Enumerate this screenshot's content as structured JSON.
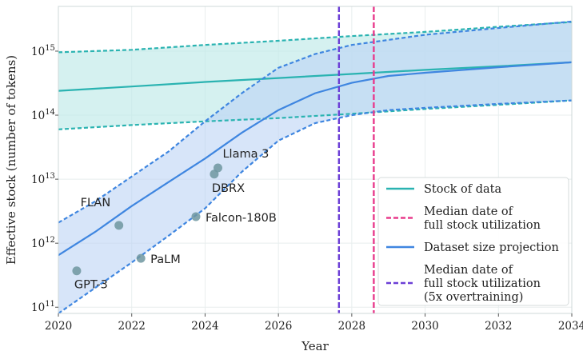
{
  "chart_data": {
    "type": "line",
    "xlabel": "Year",
    "ylabel": "Effective stock (number of tokens)",
    "xlim": [
      2020,
      2034
    ],
    "ylim": [
      80000000000.0,
      5000000000000000.0
    ],
    "yscale": "log",
    "grid": true,
    "legend_position": "bottom-right",
    "x_ticks": [
      2020,
      2022,
      2024,
      2026,
      2028,
      2030,
      2032,
      2034
    ],
    "y_ticks": [
      {
        "value": 100000000000.0,
        "base": "10",
        "exp": "11"
      },
      {
        "value": 1000000000000.0,
        "base": "10",
        "exp": "12"
      },
      {
        "value": 10000000000000.0,
        "base": "10",
        "exp": "13"
      },
      {
        "value": 100000000000000.0,
        "base": "10",
        "exp": "14"
      },
      {
        "value": 1000000000000000.0,
        "base": "10",
        "exp": "15"
      }
    ],
    "series": [
      {
        "name": "Stock of data",
        "color": "#2ab3b1",
        "median": [
          [
            2020,
            240000000000000.0
          ],
          [
            2022,
            280000000000000.0
          ],
          [
            2024,
            330000000000000.0
          ],
          [
            2026,
            380000000000000.0
          ],
          [
            2028,
            440000000000000.0
          ],
          [
            2030,
            510000000000000.0
          ],
          [
            2032,
            580000000000000.0
          ],
          [
            2034,
            670000000000000.0
          ]
        ],
        "upper": [
          [
            2020,
            960000000000000.0
          ],
          [
            2022,
            1050000000000000.0
          ],
          [
            2024,
            1250000000000000.0
          ],
          [
            2026,
            1450000000000000.0
          ],
          [
            2028,
            1720000000000000.0
          ],
          [
            2030,
            2000000000000000.0
          ],
          [
            2032,
            2400000000000000.0
          ],
          [
            2034,
            2850000000000000.0
          ]
        ],
        "lower": [
          [
            2020,
            60000000000000.0
          ],
          [
            2022,
            70000000000000.0
          ],
          [
            2024,
            80000000000000.0
          ],
          [
            2026,
            90000000000000.0
          ],
          [
            2028,
            105000000000000.0
          ],
          [
            2030,
            125000000000000.0
          ],
          [
            2032,
            145000000000000.0
          ],
          [
            2034,
            170000000000000.0
          ]
        ]
      },
      {
        "name": "Dataset size projection",
        "color": "#3f86e0",
        "median": [
          [
            2020,
            650000000000.0
          ],
          [
            2021,
            1500000000000.0
          ],
          [
            2022,
            3800000000000.0
          ],
          [
            2023,
            9000000000000.0
          ],
          [
            2024,
            21000000000000.0
          ],
          [
            2025,
            53000000000000.0
          ],
          [
            2026,
            120000000000000.0
          ],
          [
            2027,
            220000000000000.0
          ],
          [
            2028,
            320000000000000.0
          ],
          [
            2029,
            410000000000000.0
          ],
          [
            2030,
            460000000000000.0
          ],
          [
            2032,
            560000000000000.0
          ],
          [
            2034,
            670000000000000.0
          ]
        ],
        "upper": [
          [
            2020,
            2100000000000.0
          ],
          [
            2021,
            4500000000000.0
          ],
          [
            2022,
            11000000000000.0
          ],
          [
            2023,
            27000000000000.0
          ],
          [
            2024,
            80000000000000.0
          ],
          [
            2025,
            220000000000000.0
          ],
          [
            2026,
            550000000000000.0
          ],
          [
            2027,
            900000000000000.0
          ],
          [
            2028,
            1250000000000000.0
          ],
          [
            2029,
            1500000000000000.0
          ],
          [
            2030,
            1800000000000000.0
          ],
          [
            2032,
            2300000000000000.0
          ],
          [
            2034,
            2900000000000000.0
          ]
        ],
        "lower": [
          [
            2020,
            80000000000.0
          ],
          [
            2021,
            200000000000.0
          ],
          [
            2022,
            500000000000.0
          ],
          [
            2023,
            1300000000000.0
          ],
          [
            2024,
            3500000000000.0
          ],
          [
            2025,
            13000000000000.0
          ],
          [
            2026,
            40000000000000.0
          ],
          [
            2027,
            75000000000000.0
          ],
          [
            2028,
            100000000000000.0
          ],
          [
            2029,
            120000000000000.0
          ],
          [
            2030,
            130000000000000.0
          ],
          [
            2032,
            150000000000000.0
          ],
          [
            2034,
            170000000000000.0
          ]
        ]
      }
    ],
    "vlines": [
      {
        "x": 2027.65,
        "color": "#6c3fd6",
        "dash": true
      },
      {
        "x": 2028.6,
        "color": "#e83b8c",
        "dash": true
      }
    ],
    "points": [
      {
        "label": "GPT-3",
        "x": 2020.5,
        "y": 370000000000.0,
        "label_pos": "below"
      },
      {
        "label": "FLAN",
        "x": 2021.65,
        "y": 1900000000000.0,
        "label_pos": "upper-left"
      },
      {
        "label": "PaLM",
        "x": 2022.25,
        "y": 580000000000.0,
        "label_pos": "right"
      },
      {
        "label": "Falcon-180B",
        "x": 2023.75,
        "y": 2600000000000.0,
        "label_pos": "right"
      },
      {
        "label": "DBRX",
        "x": 2024.25,
        "y": 12000000000000.0,
        "label_pos": "below"
      },
      {
        "label": "Llama 3",
        "x": 2024.35,
        "y": 15000000000000.0,
        "label_pos": "above"
      }
    ],
    "legend": [
      {
        "lines": [
          "Stock of data"
        ],
        "color": "#2ab3b1",
        "dash": false
      },
      {
        "lines": [
          "Median date of",
          "full stock utilization"
        ],
        "color": "#e83b8c",
        "dash": true
      },
      {
        "lines": [
          "Dataset size projection"
        ],
        "color": "#3f86e0",
        "dash": false
      },
      {
        "lines": [
          "Median date of",
          "full stock utilization",
          "(5x overtraining)"
        ],
        "color": "#6c3fd6",
        "dash": true
      }
    ]
  }
}
